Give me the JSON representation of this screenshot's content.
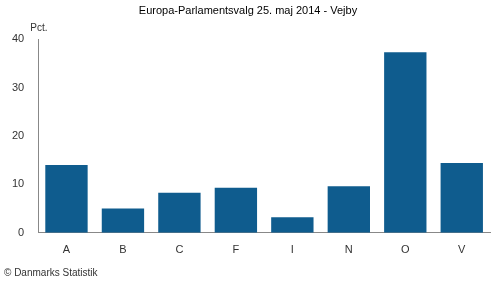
{
  "chart_data": {
    "type": "bar",
    "title": "Europa-Parlamentsvalg 25. maj 2014 - Vejby",
    "ylabel": "Pct.",
    "source": "© Danmarks Statistik",
    "categories": [
      "A",
      "B",
      "C",
      "F",
      "I",
      "N",
      "O",
      "V"
    ],
    "values": [
      14.0,
      5.0,
      8.3,
      9.3,
      3.2,
      9.6,
      37.3,
      14.4
    ],
    "color": "#0f5c8e",
    "ylim": [
      0,
      40
    ],
    "yticks": [
      0,
      10,
      20,
      30,
      40
    ],
    "grid": false
  }
}
